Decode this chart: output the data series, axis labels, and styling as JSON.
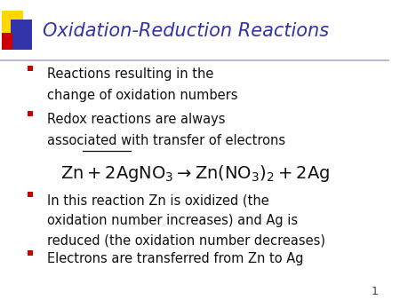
{
  "title": "Oxidation-Reduction Reactions",
  "title_color": "#3333AA",
  "title_fontsize": 15,
  "bg_color": "#FFFFFF",
  "bullet_color": "#CC0000",
  "bullet1_line1": "Reactions resulting in the",
  "bullet1_line2": "change of oxidation numbers",
  "bullet2_line1": "Redox reactions are always",
  "bullet2_line2_plain": "associated with ",
  "bullet2_line2_underline": "transfer of electrons",
  "bullet3_line1": "In this reaction Zn is oxidized (the",
  "bullet3_line2": "oxidation number increases) and Ag is",
  "bullet3_line3": "reduced (the oxidation number decreases)",
  "bullet4": "Electrons are transferred from Zn to Ag",
  "page_num": "1",
  "body_fontsize": 10.5,
  "eq_fontsize": 14,
  "decoration_yellow": "#FFD700",
  "decoration_blue": "#3333AA",
  "decoration_red": "#CC0000",
  "header_line_color": "#AAAACC"
}
